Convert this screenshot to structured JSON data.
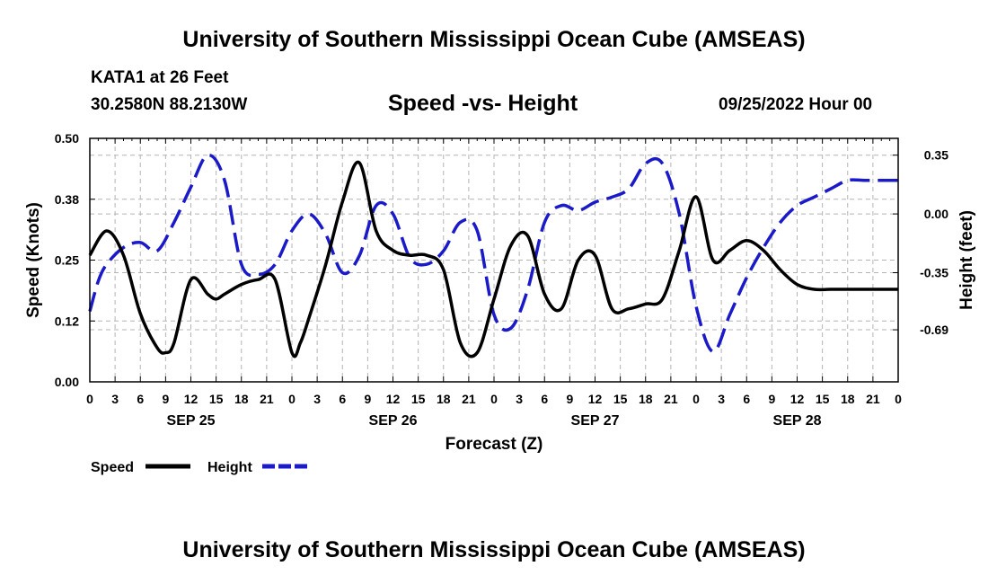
{
  "header": {
    "title": "University of Southern Mississippi Ocean Cube (AMSEAS)",
    "station": "KATA1 at 26 Feet",
    "coords": "30.2580N  88.2130W",
    "chart_title": "Speed -vs- Height",
    "datetime": "09/25/2022 Hour 00"
  },
  "footer": {
    "title": "University of Southern Mississippi Ocean Cube (AMSEAS)"
  },
  "chart_data": {
    "type": "line",
    "title": "Speed -vs- Height",
    "xlabel": "Forecast (Z)",
    "ylabel": "Speed (Knots)",
    "y2label": "Height (feet)",
    "xlim": [
      0,
      96
    ],
    "ylim": [
      0,
      0.5
    ],
    "y2lim": [
      -1.0,
      0.45
    ],
    "grid": true,
    "x_ticks": [
      0,
      3,
      6,
      9,
      12,
      15,
      18,
      21,
      24,
      27,
      30,
      33,
      36,
      39,
      42,
      45,
      48,
      51,
      54,
      57,
      60,
      63,
      66,
      69,
      72,
      75,
      78,
      81,
      84,
      87,
      90,
      93,
      96
    ],
    "x_tick_labels": [
      "0",
      "3",
      "6",
      "9",
      "12",
      "15",
      "18",
      "21",
      "0",
      "3",
      "6",
      "9",
      "12",
      "15",
      "18",
      "21",
      "0",
      "3",
      "6",
      "9",
      "12",
      "15",
      "18",
      "21",
      "0",
      "3",
      "6",
      "9",
      "12",
      "15",
      "18",
      "21",
      "0"
    ],
    "y_ticks": [
      0,
      0.125,
      0.25,
      0.375,
      0.5
    ],
    "y_tick_labels": [
      "0.00",
      "0.12",
      "0.25",
      "0.38",
      "0.50"
    ],
    "y2_ticks": [
      0.35,
      0.0,
      -0.35,
      -0.69
    ],
    "y2_tick_labels": [
      "0.35",
      "0.00",
      "-0.35",
      "-0.69"
    ],
    "day_labels": [
      {
        "x": 12,
        "label": "SEP 25"
      },
      {
        "x": 36,
        "label": "SEP 26"
      },
      {
        "x": 60,
        "label": "SEP 27"
      },
      {
        "x": 84,
        "label": "SEP 28"
      }
    ],
    "legend": [
      {
        "name": "Speed",
        "color": "#000000",
        "dash": "solid"
      },
      {
        "name": "Height",
        "color": "#1a1ac8",
        "dash": "dashed"
      }
    ],
    "series": [
      {
        "name": "Speed",
        "axis": "left",
        "color": "#000000",
        "x": [
          0,
          2,
          4,
          6,
          8,
          9,
          10,
          12,
          14,
          15,
          16,
          18,
          20,
          22,
          24,
          25,
          26,
          28,
          30,
          32,
          34,
          36,
          38,
          40,
          42,
          44,
          46,
          48,
          50,
          52,
          54,
          56,
          58,
          60,
          62,
          64,
          66,
          68,
          70,
          72,
          74,
          76,
          78,
          80,
          82,
          84,
          86,
          88,
          90,
          92,
          94,
          96
        ],
        "y": [
          0.26,
          0.31,
          0.26,
          0.14,
          0.07,
          0.06,
          0.08,
          0.21,
          0.18,
          0.17,
          0.18,
          0.2,
          0.21,
          0.21,
          0.06,
          0.08,
          0.13,
          0.24,
          0.37,
          0.45,
          0.31,
          0.27,
          0.26,
          0.26,
          0.23,
          0.08,
          0.06,
          0.17,
          0.28,
          0.3,
          0.18,
          0.15,
          0.25,
          0.26,
          0.15,
          0.15,
          0.16,
          0.17,
          0.27,
          0.38,
          0.25,
          0.27,
          0.29,
          0.27,
          0.23,
          0.2,
          0.19,
          0.19,
          0.19,
          0.19,
          0.19,
          0.19
        ]
      },
      {
        "name": "Height",
        "axis": "right",
        "color": "#1a1ac8",
        "x": [
          0,
          1,
          2,
          4,
          6,
          8,
          10,
          12,
          14,
          16,
          18,
          20,
          22,
          24,
          26,
          28,
          30,
          32,
          34,
          36,
          38,
          40,
          42,
          44,
          46,
          48,
          50,
          52,
          54,
          56,
          58,
          60,
          62,
          64,
          66,
          68,
          70,
          72,
          74,
          76,
          78,
          80,
          82,
          84,
          86,
          88,
          90,
          92,
          94,
          96
        ],
        "y": [
          -0.58,
          -0.4,
          -0.3,
          -0.2,
          -0.17,
          -0.22,
          -0.05,
          0.16,
          0.35,
          0.2,
          -0.3,
          -0.36,
          -0.3,
          -0.1,
          0.0,
          -0.12,
          -0.35,
          -0.25,
          0.05,
          0.0,
          -0.26,
          -0.3,
          -0.22,
          -0.05,
          -0.1,
          -0.6,
          -0.68,
          -0.45,
          -0.05,
          0.05,
          0.02,
          0.07,
          0.1,
          0.15,
          0.3,
          0.3,
          0.0,
          -0.55,
          -0.82,
          -0.6,
          -0.38,
          -0.2,
          -0.05,
          0.05,
          0.1,
          0.15,
          0.2,
          0.2,
          0.2,
          0.2
        ]
      }
    ]
  }
}
